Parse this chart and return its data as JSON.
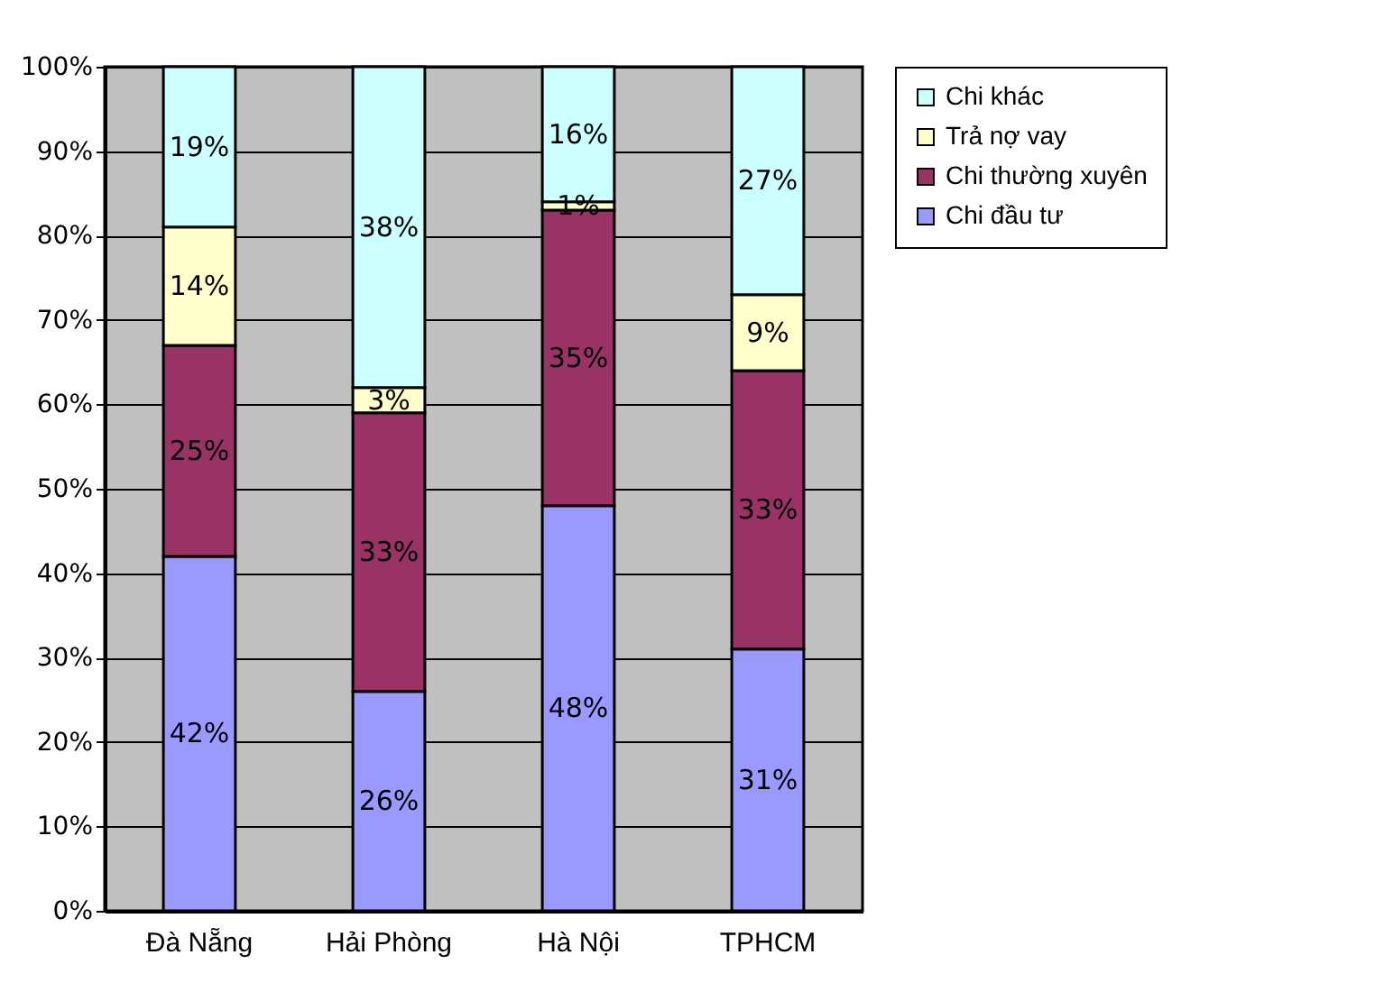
{
  "chart_data": {
    "type": "bar",
    "stacked": true,
    "categories": [
      "Đà Nẵng",
      "Hải Phòng",
      "Hà Nội",
      "TPHCM"
    ],
    "series": [
      {
        "name": "Chi đầu tư",
        "color": "#9999ff",
        "values": [
          42,
          26,
          48,
          31
        ],
        "value_labels": [
          "42%",
          "26%",
          "48%",
          "31%"
        ]
      },
      {
        "name": "Chi thường xuyên",
        "color": "#993366",
        "values": [
          25,
          33,
          35,
          33
        ],
        "value_labels": [
          "25%",
          "33%",
          "35%",
          "33%"
        ]
      },
      {
        "name": "Trả nợ vay",
        "color": "#ffffcc",
        "values": [
          14,
          3,
          1,
          9
        ],
        "value_labels": [
          "14%",
          "3%",
          "1%",
          "9%"
        ]
      },
      {
        "name": "Chi khác",
        "color": "#ccffff",
        "values": [
          19,
          38,
          16,
          27
        ],
        "value_labels": [
          "19%",
          "38%",
          "16%",
          "27%"
        ]
      }
    ],
    "ylim": [
      0,
      100
    ],
    "yticks": [
      {
        "value": 0,
        "label": "0%"
      },
      {
        "value": 10,
        "label": "10%"
      },
      {
        "value": 20,
        "label": "20%"
      },
      {
        "value": 30,
        "label": "30%"
      },
      {
        "value": 40,
        "label": "40%"
      },
      {
        "value": 50,
        "label": "50%"
      },
      {
        "value": 60,
        "label": "60%"
      },
      {
        "value": 70,
        "label": "70%"
      },
      {
        "value": 80,
        "label": "80%"
      },
      {
        "value": 90,
        "label": "90%"
      },
      {
        "value": 100,
        "label": "100%"
      }
    ],
    "grid": "y",
    "legend": "right"
  }
}
